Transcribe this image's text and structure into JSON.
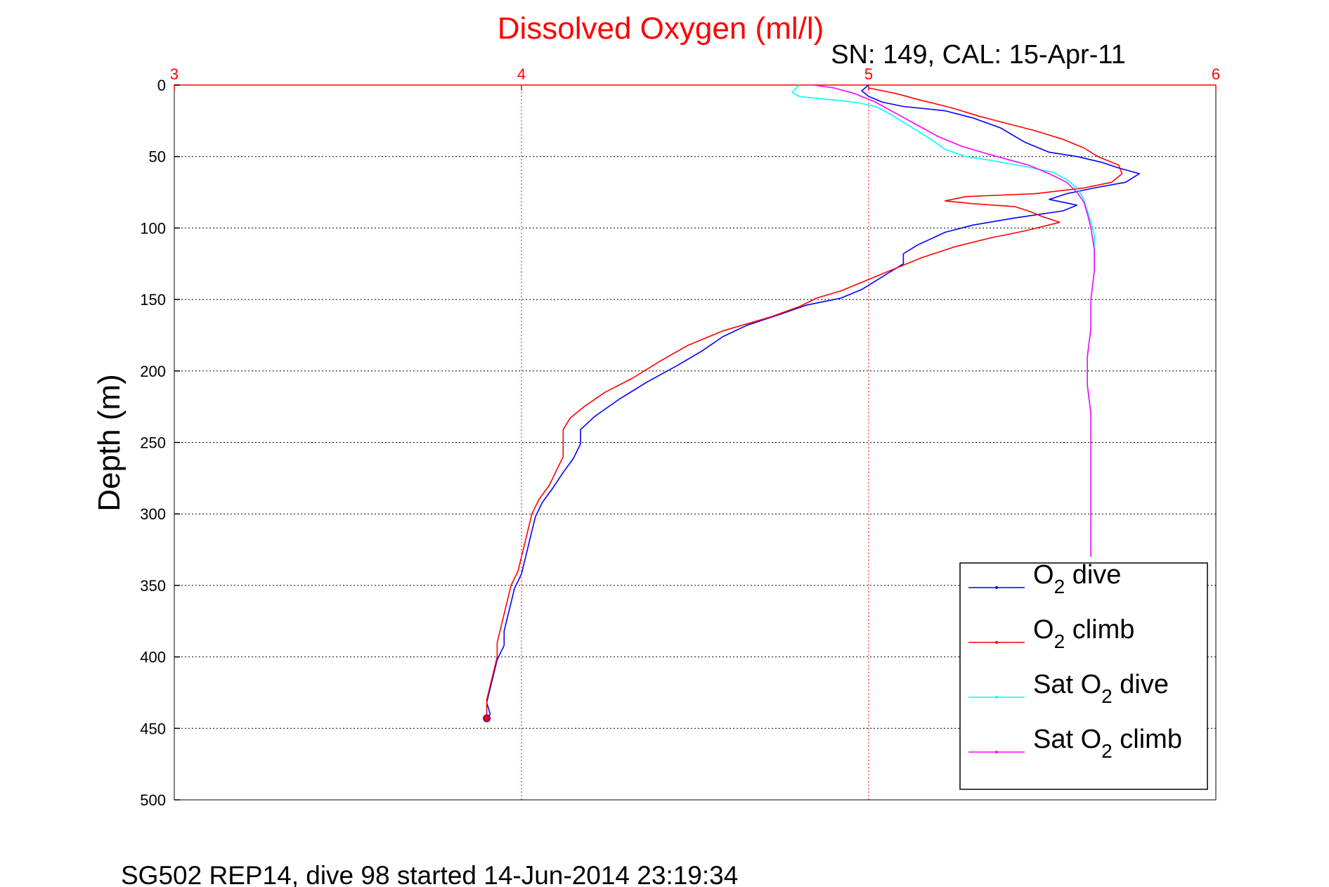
{
  "chart_data": {
    "type": "line",
    "title": "Dissolved Oxygen (ml/l)",
    "subtitle": "SN: 149, CAL: 15-Apr-11",
    "footer": "SG502 REP14, dive 98 started 14-Jun-2014 23:19:34",
    "ylabel": "Depth (m)",
    "xlim": [
      3,
      6
    ],
    "ylim": [
      0,
      500
    ],
    "y_reversed": true,
    "xaxis_location": "top",
    "x_ticks": [
      "3",
      "4",
      "5",
      "6"
    ],
    "y_ticks": [
      "0",
      "50",
      "100",
      "150",
      "200",
      "250",
      "300",
      "350",
      "400",
      "450",
      "500"
    ],
    "grid": true,
    "legend_position": "lower-right",
    "colors": {
      "title": "#ff0000",
      "xaxis": "#ff0000",
      "grid_x": "#ff0000",
      "grid_y": "#000000"
    },
    "series": [
      {
        "name": "O2 dive",
        "legend_main": "O",
        "legend_sub": "2",
        "legend_tail": " dive",
        "color": "#0000ff",
        "points": [
          [
            5.0,
            0
          ],
          [
            4.98,
            4
          ],
          [
            5.0,
            8
          ],
          [
            5.04,
            12
          ],
          [
            5.1,
            15
          ],
          [
            5.22,
            18
          ],
          [
            5.3,
            23
          ],
          [
            5.38,
            30
          ],
          [
            5.45,
            40
          ],
          [
            5.52,
            47
          ],
          [
            5.6,
            50
          ],
          [
            5.67,
            54
          ],
          [
            5.72,
            58
          ],
          [
            5.78,
            62
          ],
          [
            5.74,
            68
          ],
          [
            5.65,
            72
          ],
          [
            5.57,
            76
          ],
          [
            5.52,
            80
          ],
          [
            5.6,
            84
          ],
          [
            5.56,
            88
          ],
          [
            5.42,
            93
          ],
          [
            5.3,
            98
          ],
          [
            5.22,
            103
          ],
          [
            5.14,
            112
          ],
          [
            5.1,
            118
          ],
          [
            5.1,
            125
          ],
          [
            5.06,
            131
          ],
          [
            5.02,
            137
          ],
          [
            4.98,
            143
          ],
          [
            4.92,
            149
          ],
          [
            4.82,
            154
          ],
          [
            4.75,
            160
          ],
          [
            4.65,
            168
          ],
          [
            4.58,
            176
          ],
          [
            4.52,
            186
          ],
          [
            4.45,
            196
          ],
          [
            4.36,
            208
          ],
          [
            4.28,
            220
          ],
          [
            4.21,
            232
          ],
          [
            4.17,
            241
          ],
          [
            4.17,
            251
          ],
          [
            4.15,
            261
          ],
          [
            4.12,
            271
          ],
          [
            4.09,
            282
          ],
          [
            4.06,
            292
          ],
          [
            4.04,
            302
          ],
          [
            4.03,
            312
          ],
          [
            4.02,
            322
          ],
          [
            4.01,
            332
          ],
          [
            4.0,
            342
          ],
          [
            3.98,
            352
          ],
          [
            3.97,
            362
          ],
          [
            3.96,
            372
          ],
          [
            3.95,
            382
          ],
          [
            3.95,
            392
          ],
          [
            3.93,
            402
          ],
          [
            3.92,
            412
          ],
          [
            3.91,
            422
          ],
          [
            3.9,
            432
          ],
          [
            3.91,
            440
          ],
          [
            3.9,
            443
          ]
        ]
      },
      {
        "name": "O2 climb",
        "legend_main": "O",
        "legend_sub": "2",
        "legend_tail": " climb",
        "color": "#ff0000",
        "points": [
          [
            3.9,
            443
          ],
          [
            3.9,
            437
          ],
          [
            3.9,
            430
          ],
          [
            3.91,
            420
          ],
          [
            3.92,
            410
          ],
          [
            3.93,
            400
          ],
          [
            3.93,
            390
          ],
          [
            3.94,
            380
          ],
          [
            3.95,
            370
          ],
          [
            3.96,
            360
          ],
          [
            3.97,
            350
          ],
          [
            3.99,
            340
          ],
          [
            4.0,
            330
          ],
          [
            4.01,
            320
          ],
          [
            4.02,
            310
          ],
          [
            4.03,
            300
          ],
          [
            4.05,
            290
          ],
          [
            4.08,
            280
          ],
          [
            4.1,
            270
          ],
          [
            4.12,
            260
          ],
          [
            4.12,
            250
          ],
          [
            4.12,
            241
          ],
          [
            4.14,
            233
          ],
          [
            4.18,
            225
          ],
          [
            4.24,
            215
          ],
          [
            4.32,
            205
          ],
          [
            4.4,
            193
          ],
          [
            4.48,
            182
          ],
          [
            4.58,
            172
          ],
          [
            4.72,
            162
          ],
          [
            4.8,
            155
          ],
          [
            4.85,
            149
          ],
          [
            4.92,
            144
          ],
          [
            4.98,
            138
          ],
          [
            5.06,
            130
          ],
          [
            5.15,
            121
          ],
          [
            5.25,
            113
          ],
          [
            5.35,
            107
          ],
          [
            5.45,
            102
          ],
          [
            5.55,
            96
          ],
          [
            5.5,
            92
          ],
          [
            5.46,
            88
          ],
          [
            5.42,
            85
          ],
          [
            5.3,
            83
          ],
          [
            5.22,
            81
          ],
          [
            5.28,
            78
          ],
          [
            5.48,
            76
          ],
          [
            5.62,
            72
          ],
          [
            5.7,
            68
          ],
          [
            5.73,
            62
          ],
          [
            5.72,
            56
          ],
          [
            5.66,
            50
          ],
          [
            5.62,
            44
          ],
          [
            5.56,
            38
          ],
          [
            5.48,
            32
          ],
          [
            5.4,
            27
          ],
          [
            5.32,
            22
          ],
          [
            5.24,
            16
          ],
          [
            5.14,
            10
          ],
          [
            5.08,
            6
          ],
          [
            5.0,
            2
          ]
        ]
      },
      {
        "name": "Sat O2 dive",
        "legend_main": "Sat O",
        "legend_sub": "2",
        "legend_tail": " dive",
        "color": "#00ffff",
        "points": [
          [
            4.8,
            0
          ],
          [
            4.78,
            5
          ],
          [
            4.8,
            8
          ],
          [
            4.88,
            10
          ],
          [
            4.96,
            12
          ],
          [
            5.02,
            15
          ],
          [
            5.06,
            20
          ],
          [
            5.1,
            26
          ],
          [
            5.14,
            32
          ],
          [
            5.18,
            38
          ],
          [
            5.22,
            45
          ],
          [
            5.28,
            50
          ],
          [
            5.36,
            53
          ],
          [
            5.45,
            57
          ],
          [
            5.53,
            61
          ],
          [
            5.57,
            66
          ],
          [
            5.6,
            72
          ],
          [
            5.62,
            80
          ],
          [
            5.63,
            88
          ],
          [
            5.64,
            96
          ],
          [
            5.65,
            105
          ],
          [
            5.65,
            115
          ],
          [
            5.65,
            130
          ],
          [
            5.64,
            150
          ],
          [
            5.64,
            170
          ],
          [
            5.63,
            190
          ],
          [
            5.63,
            210
          ],
          [
            5.64,
            230
          ],
          [
            5.64,
            250
          ],
          [
            5.64,
            270
          ],
          [
            5.64,
            290
          ],
          [
            5.64,
            310
          ],
          [
            5.64,
            330
          ]
        ]
      },
      {
        "name": "Sat O2 climb",
        "legend_main": "Sat O",
        "legend_sub": "2",
        "legend_tail": " climb",
        "color": "#ff00ff",
        "points": [
          [
            5.64,
            330
          ],
          [
            5.64,
            310
          ],
          [
            5.64,
            290
          ],
          [
            5.64,
            270
          ],
          [
            5.64,
            250
          ],
          [
            5.64,
            230
          ],
          [
            5.63,
            210
          ],
          [
            5.63,
            190
          ],
          [
            5.64,
            170
          ],
          [
            5.64,
            150
          ],
          [
            5.65,
            130
          ],
          [
            5.65,
            115
          ],
          [
            5.64,
            100
          ],
          [
            5.63,
            90
          ],
          [
            5.62,
            82
          ],
          [
            5.6,
            75
          ],
          [
            5.57,
            68
          ],
          [
            5.52,
            62
          ],
          [
            5.46,
            56
          ],
          [
            5.4,
            52
          ],
          [
            5.34,
            48
          ],
          [
            5.27,
            43
          ],
          [
            5.2,
            36
          ],
          [
            5.14,
            28
          ],
          [
            5.08,
            20
          ],
          [
            5.02,
            12
          ],
          [
            4.96,
            6
          ],
          [
            4.9,
            2
          ],
          [
            4.84,
            0
          ]
        ]
      }
    ]
  }
}
